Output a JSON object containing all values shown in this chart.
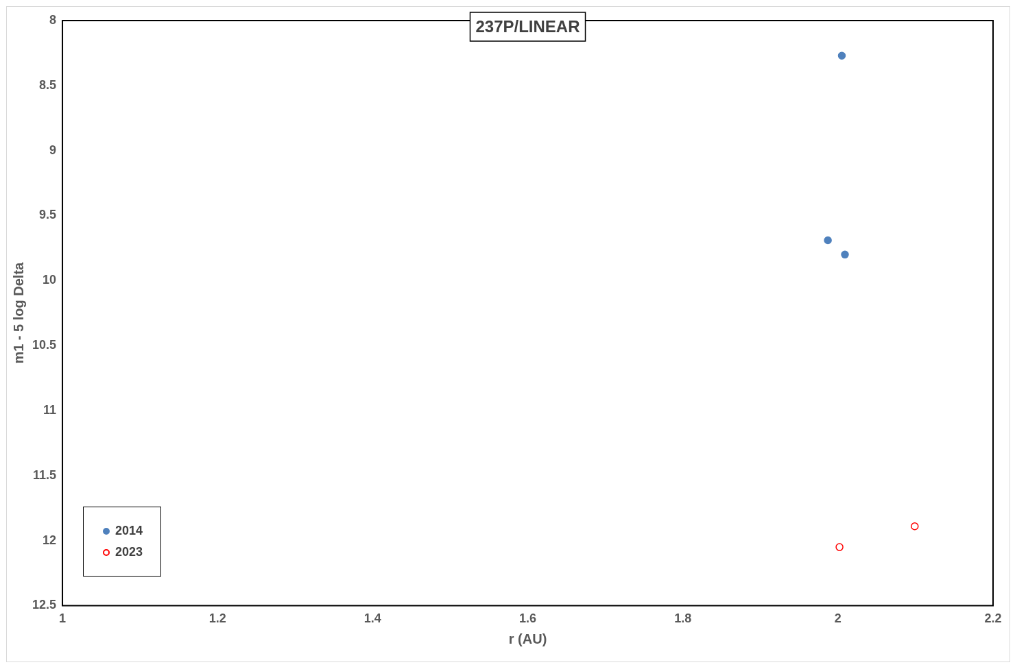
{
  "chart_data": {
    "type": "scatter",
    "title": "237P/LINEAR",
    "xlabel": "r (AU)",
    "ylabel": "m1 - 5 log Delta",
    "xlim": [
      1,
      2.2
    ],
    "xticks": [
      1,
      1.2,
      1.4,
      1.6,
      1.8,
      2,
      2.2
    ],
    "ylim": [
      12.5,
      8
    ],
    "yticks": [
      8,
      8.5,
      9,
      9.5,
      10,
      10.5,
      11,
      11.5,
      12,
      12.5
    ],
    "grid": false,
    "legend": "bottom left",
    "marker": "circle",
    "series": [
      {
        "name": "2014",
        "color": "#4f81bd",
        "x": [
          2.005,
          1.987,
          2.009
        ],
        "values": [
          8.27,
          9.69,
          9.8
        ]
      },
      {
        "name": "2023",
        "color": "#ff0000",
        "x": [
          2.002,
          2.099
        ],
        "values": [
          12.05,
          11.89
        ]
      }
    ]
  }
}
